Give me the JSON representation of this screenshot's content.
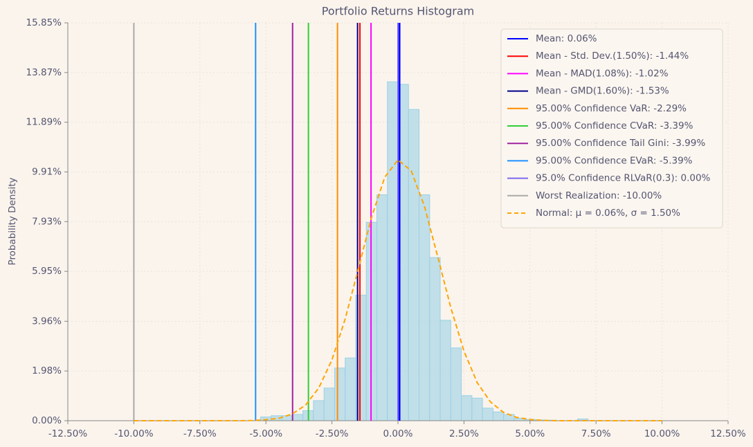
{
  "chart_data": {
    "type": "histogram",
    "title": "Portfolio Returns Histogram",
    "y_label": "Probability Density",
    "bins": [
      -5.2,
      -4.8,
      -4.4,
      -4.0,
      -3.6,
      -3.2,
      -2.8,
      -2.4,
      -2.0,
      -1.6,
      -1.2,
      -0.8,
      -0.4,
      0.0,
      0.4,
      0.8,
      1.2,
      1.6,
      2.0,
      2.4,
      2.8,
      3.2,
      3.6,
      4.0,
      4.4,
      4.8,
      5.2,
      5.6,
      6.0,
      6.4,
      6.8,
      7.2
    ],
    "values": [
      0.15,
      0.2,
      0.2,
      0.25,
      0.4,
      0.8,
      1.3,
      2.1,
      2.5,
      5.0,
      7.9,
      9.0,
      13.5,
      13.4,
      12.4,
      9.0,
      6.5,
      4.0,
      2.9,
      1.0,
      0.9,
      0.5,
      0.35,
      0.25,
      0.1,
      0.05,
      0.03,
      0.02,
      0.0,
      0.0,
      0.07
    ],
    "color": "#add8e6",
    "lines": [
      {
        "name": "Mean: 0.06%",
        "color": "#0000ff",
        "value": 0.06
      },
      {
        "name": "Mean - Std. Dev.(1.50%): -1.44%",
        "color": "#ff0000",
        "value": -1.44
      },
      {
        "name": "Mean - MAD(1.08%): -1.02%",
        "color": "#ff00ff",
        "value": -1.02
      },
      {
        "name": "Mean - GMD(1.60%): -1.53%",
        "color": "#00008b",
        "value": -1.53
      },
      {
        "name": "95.00% Confidence VaR: -2.29%",
        "color": "#ff8c00",
        "value": -2.29
      },
      {
        "name": "95.00% Confidence CVaR: -3.39%",
        "color": "#32cd32",
        "value": -3.39
      },
      {
        "name": "95.00% Confidence Tail Gini: -3.99%",
        "color": "#a0209f",
        "value": -3.99
      },
      {
        "name": "95.00% Confidence EVaR: -5.39%",
        "color": "#1e90ff",
        "value": -5.39
      },
      {
        "name": "95.0% Confidence RLVaR(0.3): 0.00%",
        "color": "#7b68ee",
        "value": 0.0
      },
      {
        "name": "Worst Realization: -10.00%",
        "color": "#a9a9a9",
        "value": -10.0
      }
    ],
    "normal": {
      "name": "Normal: μ = 0.06%, σ = 1.50%",
      "color": "#ffa500",
      "x": [
        -10,
        -9,
        -8,
        -7,
        -6,
        -5.5,
        -5,
        -4.5,
        -4,
        -3.5,
        -3,
        -2.5,
        -2,
        -1.5,
        -1,
        -0.5,
        0,
        0.5,
        1,
        1.5,
        2,
        2.5,
        3,
        3.5,
        4,
        4.5,
        5,
        5.5,
        6,
        7,
        8,
        9,
        10
      ],
      "values": [
        0,
        0,
        0,
        0,
        0,
        0.01,
        0.04,
        0.1,
        0.27,
        0.62,
        1.3,
        2.42,
        4.05,
        6.05,
        8.1,
        9.7,
        10.39,
        9.96,
        8.55,
        6.56,
        4.51,
        2.77,
        1.52,
        0.75,
        0.33,
        0.13,
        0.05,
        0.01,
        0,
        0,
        0,
        0,
        0
      ]
    },
    "xlim": [
      -12.5,
      12.5
    ],
    "xticks": [
      {
        "value": -12.5,
        "label": "-12.50%"
      },
      {
        "value": -10,
        "label": "-10.00%"
      },
      {
        "value": -7.5,
        "label": "-7.50%"
      },
      {
        "value": -5,
        "label": "-5.00%"
      },
      {
        "value": -2.5,
        "label": "-2.50%"
      },
      {
        "value": 0,
        "label": "0.00%"
      },
      {
        "value": 2.5,
        "label": "2.50%"
      },
      {
        "value": 5,
        "label": "5.00%"
      },
      {
        "value": 7.5,
        "label": "7.50%"
      },
      {
        "value": 10,
        "label": "10.00%"
      },
      {
        "value": 12.5,
        "label": "12.50%"
      }
    ],
    "ylim": [
      0,
      15.85
    ],
    "yticks": [
      {
        "value": 0,
        "label": "0.00%"
      },
      {
        "value": 1.98,
        "label": "1.98%"
      },
      {
        "value": 3.96,
        "label": "3.96%"
      },
      {
        "value": 5.95,
        "label": "5.95%"
      },
      {
        "value": 7.93,
        "label": "7.93%"
      },
      {
        "value": 9.91,
        "label": "9.91%"
      },
      {
        "value": 11.89,
        "label": "11.89%"
      },
      {
        "value": 13.87,
        "label": "13.87%"
      },
      {
        "value": 15.85,
        "label": "15.85%"
      }
    ],
    "grid": true,
    "legend": "upper right"
  }
}
